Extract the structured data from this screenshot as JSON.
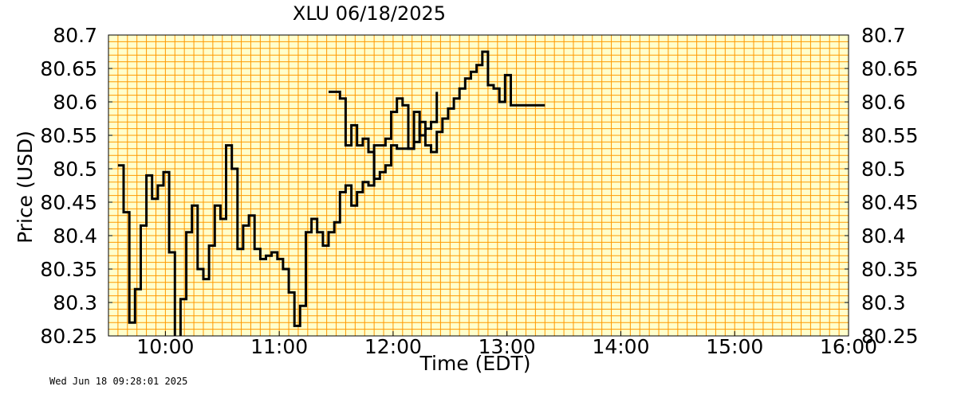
{
  "chart_data": {
    "type": "line",
    "title": "XLU  06/18/2025",
    "xlabel": "Time (EDT)",
    "ylabel": "Price (USD)",
    "ylim": [
      80.25,
      80.7
    ],
    "xlim": [
      "09:30",
      "16:00"
    ],
    "y_ticks": [
      "80.25",
      "80.3",
      "80.35",
      "80.4",
      "80.45",
      "80.5",
      "80.55",
      "80.6",
      "80.65",
      "80.7"
    ],
    "x_ticks": [
      "10:00",
      "11:00",
      "12:00",
      "13:00",
      "14:00",
      "15:00",
      "16:00"
    ],
    "grid": true,
    "step": true,
    "colors": {
      "background": "#ffffff",
      "plot_bg": "#ffffcc",
      "grid": "#ff9900",
      "line": "#000000"
    },
    "series": [
      {
        "x": [
          "09:35",
          "09:38",
          "09:41",
          "09:44",
          "09:47",
          "09:50",
          "09:53",
          "09:56",
          "09:59",
          "10:02",
          "10:05",
          "10:08",
          "10:11",
          "10:14",
          "10:17",
          "10:20",
          "10:23",
          "10:26",
          "10:29",
          "10:32",
          "10:35",
          "10:38",
          "10:41",
          "10:44",
          "10:47",
          "10:50",
          "10:53",
          "10:56",
          "10:59",
          "11:02",
          "11:05",
          "11:08",
          "11:11",
          "11:14",
          "11:17",
          "11:20",
          "11:23",
          "11:26",
          "11:29",
          "11:32",
          "11:35",
          "11:38",
          "11:41",
          "11:44",
          "11:47",
          "11:50",
          "11:53",
          "11:56",
          "11:59",
          "12:02",
          "12:05",
          "12:08",
          "12:11",
          "12:14",
          "12:17",
          "12:20",
          "12:23"
        ],
        "y": [
          80.505,
          80.435,
          80.27,
          80.32,
          80.415,
          80.49,
          80.455,
          80.475,
          80.495,
          80.375,
          80.245,
          80.305,
          80.405,
          80.445,
          80.35,
          80.335,
          80.385,
          80.445,
          80.425,
          80.535,
          80.5,
          80.38,
          80.415,
          80.43,
          80.38,
          80.365,
          80.37,
          80.375,
          80.365,
          80.35,
          80.315,
          80.265,
          80.295,
          80.405,
          80.425,
          80.405,
          80.385,
          80.405,
          80.42,
          80.465,
          80.475,
          80.445,
          80.465,
          80.48,
          80.475,
          80.535,
          80.535,
          80.545,
          80.585,
          80.605,
          80.595,
          80.53,
          80.585,
          80.55,
          80.56,
          80.57,
          80.615
        ]
      },
      {
        "x": [
          "11:26",
          "11:29",
          "11:32",
          "11:35",
          "11:38",
          "11:41",
          "11:44",
          "11:47",
          "11:50",
          "11:53",
          "11:56",
          "11:59",
          "12:02",
          "12:05",
          "12:08",
          "12:11",
          "12:14",
          "12:17",
          "12:20",
          "12:23",
          "12:26",
          "12:29",
          "12:32",
          "12:35",
          "12:38",
          "12:41",
          "12:44",
          "12:47",
          "12:50",
          "12:53",
          "12:56",
          "12:59",
          "13:02",
          "13:05",
          "13:08",
          "13:11",
          "13:14",
          "13:17",
          "13:20"
        ],
        "y": [
          80.615,
          80.615,
          80.605,
          80.535,
          80.565,
          80.535,
          80.545,
          80.525,
          80.485,
          80.495,
          80.505,
          80.535,
          80.53,
          80.53,
          80.53,
          80.54,
          80.57,
          80.535,
          80.525,
          80.555,
          80.575,
          80.59,
          80.605,
          80.62,
          80.635,
          80.645,
          80.655,
          80.675,
          80.625,
          80.62,
          80.6,
          80.64,
          80.595,
          80.595,
          80.595,
          80.595,
          80.595,
          80.595,
          80.595
        ]
      }
    ]
  },
  "timestamp": "Wed Jun 18 09:28:01 2025"
}
